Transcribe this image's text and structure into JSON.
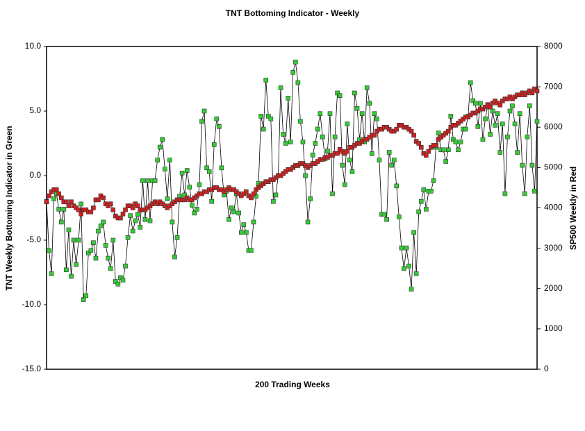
{
  "chart_data": {
    "type": "line",
    "title": "TNT Bottoming Indicator - Weekly",
    "xlabel": "200 Trading Weeks",
    "ylabel": "TNT Weekly Bottoming Indicator in Green",
    "y2label": "SP500 Weekly in Red",
    "ylim": [
      -15,
      10
    ],
    "yticks": [
      {
        "value": 10,
        "label": "10.0"
      },
      {
        "value": 5,
        "label": "5.0"
      },
      {
        "value": 0,
        "label": "0.0"
      },
      {
        "value": -5,
        "label": "-5.0"
      },
      {
        "value": -10,
        "label": "-10.0"
      },
      {
        "value": -15,
        "label": "-15.0"
      }
    ],
    "y2lim": [
      0,
      8000
    ],
    "y2ticks": [
      0,
      1000,
      2000,
      3000,
      4000,
      5000,
      6000,
      7000,
      8000
    ],
    "series": [
      {
        "color": "#33cc33",
        "axis": "y",
        "values": [
          -2.0,
          -5.8,
          -7.6,
          -1.8,
          -1.4,
          -2.6,
          -3.6,
          -2.6,
          -7.3,
          -4.2,
          -7.8,
          -5.0,
          -6.9,
          -5.0,
          -2.2,
          -9.6,
          -9.3,
          -6.0,
          -5.8,
          -5.2,
          -6.4,
          -4.3,
          -3.9,
          -3.6,
          -5.4,
          -6.4,
          -7.2,
          -5.0,
          -8.2,
          -8.4,
          -7.9,
          -8.1,
          -7.0,
          -4.8,
          -3.1,
          -4.3,
          -3.5,
          -3.0,
          -4.0,
          -0.4,
          -3.4,
          -0.4,
          -3.5,
          -0.4,
          -0.4,
          1.2,
          2.2,
          2.8,
          0.5,
          -1.8,
          1.2,
          -3.6,
          -6.3,
          -4.8,
          -1.6,
          0.2,
          -1.5,
          0.4,
          -0.9,
          -2.3,
          -2.9,
          -2.6,
          -0.7,
          4.2,
          5.0,
          0.6,
          0.3,
          -2.0,
          2.4,
          4.4,
          3.8,
          0.6,
          -1.5,
          -1.2,
          -3.4,
          -2.5,
          -2.8,
          -1.4,
          -2.9,
          -4.4,
          -3.8,
          -4.4,
          -5.8,
          -5.8,
          -3.6,
          -1.6,
          -0.6,
          4.6,
          3.6,
          7.4,
          4.6,
          4.4,
          -2.0,
          -1.5,
          0.0,
          6.8,
          3.2,
          2.5,
          6.0,
          2.6,
          8.0,
          8.8,
          7.2,
          4.2,
          2.6,
          0.0,
          -3.6,
          -1.8,
          1.6,
          2.5,
          3.6,
          4.8,
          3.0,
          1.3,
          1.9,
          4.8,
          -1.4,
          3.0,
          6.4,
          6.2,
          0.8,
          -0.7,
          4.0,
          1.2,
          0.3,
          6.4,
          5.2,
          2.8,
          4.8,
          2.6,
          6.8,
          5.6,
          1.7,
          4.8,
          4.4,
          1.2,
          -3.0,
          -3.0,
          -3.4,
          1.8,
          0.8,
          1.2,
          -0.8,
          -3.2,
          -5.6,
          -7.2,
          -5.6,
          -7.0,
          -8.8,
          -4.4,
          -7.6,
          -2.8,
          -2.0,
          -1.1,
          -2.6,
          -1.2,
          -1.2,
          -0.4,
          2.2,
          3.3,
          2.0,
          2.0,
          1.1,
          2.0,
          4.6,
          2.8,
          2.6,
          2.0,
          2.6,
          3.6,
          3.6,
          4.6,
          7.2,
          5.8,
          5.6,
          3.8,
          5.6,
          2.8,
          4.4,
          5.5,
          3.2,
          5.0,
          3.9,
          4.8,
          1.8,
          4.0,
          -1.4,
          3.0,
          5.0,
          5.4,
          4.0,
          1.8,
          4.8,
          0.8,
          -1.4,
          3.0,
          5.4,
          0.8,
          -1.2,
          4.2
        ]
      },
      {
        "color": "#cc2222",
        "axis": "y2",
        "values": [
          4150,
          4300,
          4400,
          4450,
          4450,
          4350,
          4250,
          4150,
          4150,
          4050,
          4150,
          4050,
          4000,
          3950,
          3850,
          3950,
          3950,
          3900,
          3900,
          4000,
          4200,
          4200,
          4300,
          4250,
          4100,
          4050,
          4100,
          3950,
          3800,
          3750,
          3750,
          3850,
          3950,
          4050,
          4050,
          4000,
          4100,
          4050,
          3950,
          3950,
          3950,
          4000,
          4050,
          4100,
          4150,
          4100,
          4150,
          4100,
          4050,
          4000,
          4050,
          4100,
          4150,
          4200,
          4200,
          4200,
          4200,
          4250,
          4200,
          4200,
          4250,
          4300,
          4350,
          4350,
          4400,
          4400,
          4450,
          4450,
          4500,
          4500,
          4450,
          4450,
          4400,
          4450,
          4500,
          4450,
          4450,
          4400,
          4350,
          4300,
          4350,
          4400,
          4300,
          4250,
          4350,
          4450,
          4500,
          4550,
          4600,
          4650,
          4650,
          4700,
          4700,
          4750,
          4800,
          4800,
          4850,
          4900,
          4950,
          4950,
          5000,
          5050,
          5050,
          5100,
          5100,
          5050,
          5000,
          5050,
          5100,
          5100,
          5150,
          5200,
          5200,
          5250,
          5250,
          5300,
          5300,
          5350,
          5350,
          5450,
          5400,
          5350,
          5400,
          5500,
          5500,
          5550,
          5600,
          5600,
          5650,
          5700,
          5700,
          5750,
          5800,
          5800,
          5900,
          5950,
          5950,
          6000,
          6000,
          5950,
          5900,
          5900,
          5950,
          6050,
          6050,
          6000,
          6000,
          5950,
          5900,
          5800,
          5650,
          5600,
          5500,
          5350,
          5300,
          5400,
          5500,
          5550,
          5550,
          5700,
          5750,
          5800,
          5850,
          5900,
          6000,
          6050,
          6050,
          6100,
          6150,
          6200,
          6250,
          6250,
          6300,
          6350,
          6350,
          6400,
          6450,
          6450,
          6500,
          6550,
          6500,
          6600,
          6650,
          6600,
          6550,
          6650,
          6700,
          6700,
          6750,
          6700,
          6750,
          6800,
          6800,
          6850,
          6800,
          6850,
          6900,
          6850,
          6950,
          6900
        ]
      }
    ]
  }
}
